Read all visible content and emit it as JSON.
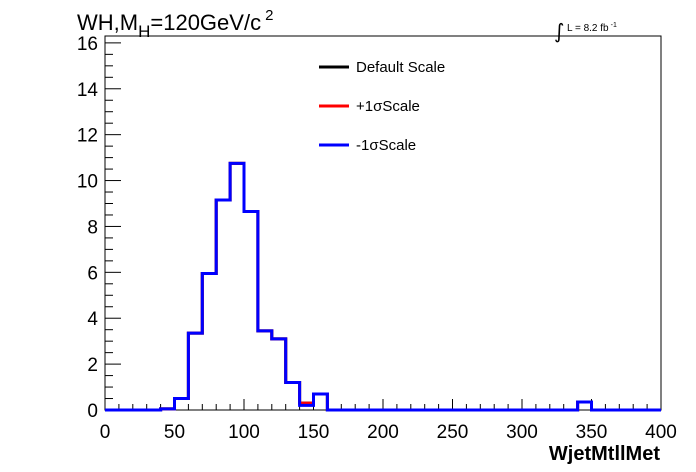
{
  "chart_data": {
    "type": "line",
    "title_parts": [
      "WH,M",
      "H",
      "=120GeV/c",
      "2"
    ],
    "lumi": {
      "symbol": "∫",
      "text": "L = 8.2 fb",
      "exp": "-1"
    },
    "xlabel": "WjetMtllMet",
    "ylabel": "",
    "xlim": [
      0,
      400
    ],
    "ylim": [
      0,
      16.3
    ],
    "xticks": [
      "0",
      "50",
      "100",
      "150",
      "200",
      "250",
      "300",
      "350",
      "400"
    ],
    "yticks": [
      "0",
      "2",
      "4",
      "6",
      "8",
      "10",
      "12",
      "14",
      "16"
    ],
    "bin_width": 10,
    "bin_edges": [
      0,
      10,
      20,
      30,
      40,
      50,
      60,
      70,
      80,
      90,
      100,
      110,
      120,
      130,
      140,
      150,
      160,
      170,
      180,
      190,
      200,
      210,
      220,
      230,
      240,
      250,
      260,
      270,
      280,
      290,
      300,
      310,
      320,
      330,
      340,
      350,
      360,
      370,
      380,
      390,
      400
    ],
    "legend_position": "top-center",
    "series": [
      {
        "name": "Default Scale",
        "color": "#000000",
        "values": [
          0,
          0,
          0,
          0,
          0.05,
          0.5,
          3.35,
          5.95,
          9.15,
          10.75,
          8.65,
          3.45,
          3.1,
          1.2,
          0.3,
          0.7,
          0,
          0,
          0,
          0,
          0,
          0,
          0,
          0,
          0,
          0,
          0,
          0,
          0,
          0,
          0,
          0,
          0,
          0,
          0.35,
          0,
          0,
          0,
          0,
          0
        ]
      },
      {
        "name": "+1σScale",
        "color": "#ff0000",
        "values": [
          0,
          0,
          0,
          0,
          0.05,
          0.5,
          3.35,
          5.95,
          9.15,
          10.75,
          8.65,
          3.45,
          3.1,
          1.2,
          0.3,
          0.7,
          0,
          0,
          0,
          0,
          0,
          0,
          0,
          0,
          0,
          0,
          0,
          0,
          0,
          0,
          0,
          0,
          0,
          0,
          0.35,
          0,
          0,
          0,
          0,
          0
        ]
      },
      {
        "name": "-1σScale",
        "color": "#0000ff",
        "values": [
          0,
          0,
          0,
          0,
          0.05,
          0.5,
          3.35,
          5.95,
          9.15,
          10.75,
          8.65,
          3.45,
          3.1,
          1.2,
          0.2,
          0.7,
          0,
          0,
          0,
          0,
          0,
          0,
          0,
          0,
          0,
          0,
          0,
          0,
          0,
          0,
          0,
          0,
          0,
          0,
          0.35,
          0,
          0,
          0,
          0,
          0
        ]
      }
    ]
  }
}
